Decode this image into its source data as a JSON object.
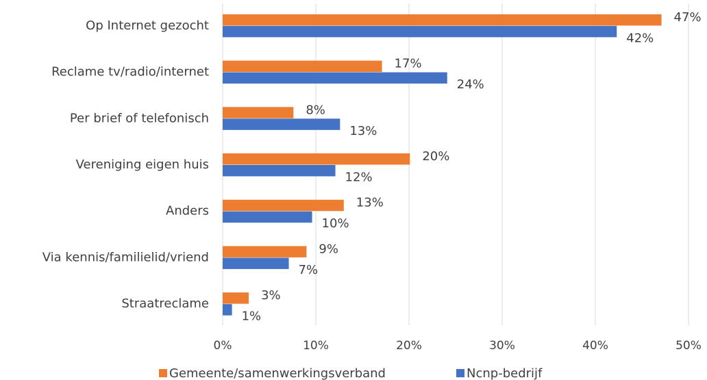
{
  "chart_data": {
    "type": "hbar",
    "categories": [
      "Op Internet gezocht",
      "Reclame tv/radio/internet",
      "Per brief of telefonisch",
      "Vereniging eigen huis",
      "Anders",
      "Via kennis/familielid/vriend",
      "Straatreclame"
    ],
    "series": [
      {
        "name": "Gemeente/samenwerkingsverband",
        "color": "#ed7d31",
        "values": [
          47.1,
          17.1,
          7.6,
          20.1,
          13.0,
          9.0,
          2.8
        ],
        "value_labels": [
          "47%",
          "17%",
          "8%",
          "20%",
          "13%",
          "9%",
          "3%"
        ]
      },
      {
        "name": "Ncnp-bedrijf",
        "color": "#4472c4",
        "values": [
          42.3,
          24.1,
          12.6,
          12.1,
          9.6,
          7.1,
          1.0
        ],
        "value_labels": [
          "42%",
          "24%",
          "13%",
          "12%",
          "10%",
          "7%",
          "1%"
        ]
      }
    ],
    "xlim": [
      0,
      50
    ],
    "xticks": [
      {
        "value": 0,
        "label": "0%"
      },
      {
        "value": 10,
        "label": "10%"
      },
      {
        "value": 20,
        "label": "20%"
      },
      {
        "value": 30,
        "label": "30%"
      },
      {
        "value": 40,
        "label": "40%"
      },
      {
        "value": 50,
        "label": "50%"
      }
    ],
    "grid": true,
    "legend": "bottom"
  }
}
